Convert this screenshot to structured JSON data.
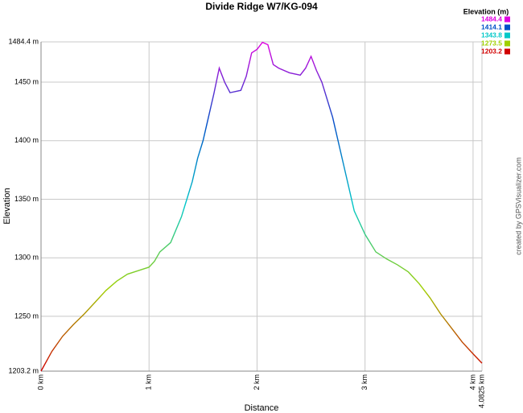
{
  "chart_data": {
    "type": "line",
    "title": "Divide Ridge W7/KG-094",
    "x_label": "Distance",
    "y_label": "Elevation",
    "credit": "created by GPSVisualizer.com",
    "x": [
      0,
      0.1,
      0.2,
      0.3,
      0.4,
      0.5,
      0.6,
      0.7,
      0.8,
      0.9,
      1.0,
      1.05,
      1.1,
      1.2,
      1.3,
      1.4,
      1.45,
      1.5,
      1.55,
      1.6,
      1.65,
      1.7,
      1.75,
      1.85,
      1.9,
      1.95,
      2.0,
      2.05,
      2.1,
      2.15,
      2.2,
      2.3,
      2.4,
      2.45,
      2.5,
      2.55,
      2.6,
      2.7,
      2.8,
      2.9,
      3.0,
      3.1,
      3.2,
      3.3,
      3.4,
      3.5,
      3.6,
      3.7,
      3.8,
      3.9,
      4.0,
      4.0825
    ],
    "series": [
      {
        "name": "Elevation",
        "values": [
          1203.2,
          1220,
          1233,
          1243,
          1252,
          1262,
          1272,
          1280,
          1286,
          1289,
          1292,
          1297,
          1305,
          1313,
          1335,
          1365,
          1385,
          1400,
          1420,
          1440,
          1462,
          1450,
          1441,
          1443,
          1455,
          1475,
          1478,
          1484,
          1482,
          1465,
          1462,
          1458,
          1456,
          1462,
          1472,
          1460,
          1450,
          1420,
          1380,
          1340,
          1320,
          1305,
          1299,
          1294,
          1288,
          1278,
          1266,
          1252,
          1240,
          1228,
          1218,
          1210
        ]
      }
    ],
    "xlim": [
      0,
      4.0825
    ],
    "xticks": [
      {
        "value": 0,
        "label": "0 km"
      },
      {
        "value": 1,
        "label": "1 km"
      },
      {
        "value": 2,
        "label": "2 km"
      },
      {
        "value": 3,
        "label": "3 km"
      },
      {
        "value": 4,
        "label": "4 km"
      },
      {
        "value": 4.0825,
        "label": "4.0825 km"
      }
    ],
    "ylim": [
      1203.2,
      1484.4
    ],
    "yticks": [
      {
        "value": 1203.2,
        "label": "1203.2 m"
      },
      {
        "value": 1250,
        "label": "1250 m"
      },
      {
        "value": 1300,
        "label": "1300 m"
      },
      {
        "value": 1350,
        "label": "1350 m"
      },
      {
        "value": 1400,
        "label": "1400 m"
      },
      {
        "value": 1450,
        "label": "1450 m"
      },
      {
        "value": 1484.4,
        "label": "1484.4 m"
      }
    ],
    "grid": true,
    "legend": {
      "title": "Elevation (m)",
      "entries": [
        {
          "value": 1484.4,
          "color": "#e000e0"
        },
        {
          "value": 1414.1,
          "color": "#0050c8"
        },
        {
          "value": 1343.8,
          "color": "#00c8c8"
        },
        {
          "value": 1273.5,
          "color": "#a0d000"
        },
        {
          "value": 1203.2,
          "color": "#d00000"
        }
      ]
    }
  }
}
